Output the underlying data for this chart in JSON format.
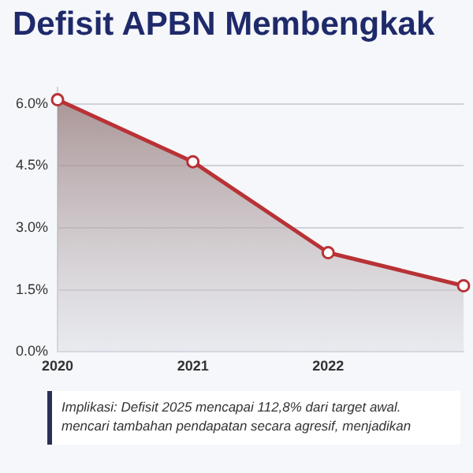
{
  "chart_data": {
    "type": "area",
    "title": "Defisit APBN Membengkak",
    "categories": [
      "2020",
      "2021",
      "2022",
      null
    ],
    "series": [
      {
        "color": "#b83236",
        "values": [
          6.1,
          4.6,
          2.4,
          1.6
        ]
      }
    ],
    "ylim": [
      0,
      6.4
    ],
    "yticks": [
      {
        "value": 0,
        "label": "0.0%"
      },
      {
        "value": 1.5,
        "label": "1.5%"
      },
      {
        "value": 3,
        "label": "3.0%"
      },
      {
        "value": 4.5,
        "label": "4.5%"
      },
      {
        "value": 6,
        "label": "6.0%"
      }
    ],
    "grid": "y",
    "legend": false,
    "marker": "circle",
    "line_style": "solid",
    "annotations": [
      "Implikasi: Defisit 2025 mencapai 112,8% dari target awal.",
      "mencari tambahan pendapatan secara agresif, menjadikan"
    ]
  }
}
